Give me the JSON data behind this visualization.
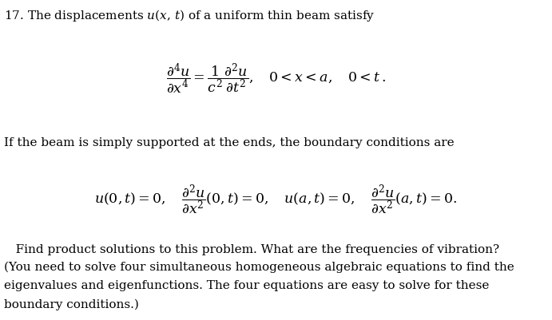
{
  "background_color": "#ffffff",
  "text_color": "#000000",
  "fig_width": 6.91,
  "fig_height": 4.02,
  "dpi": 100,
  "line1": "17. The displacements $u(x,\\, t)$ of a uniform thin beam satisfy",
  "eq1": "$\\dfrac{\\partial^4 u}{\\partial x^4} = \\dfrac{1}{c^2}\\dfrac{\\partial^2 u}{\\partial t^2}, \\quad 0 < x < a, \\quad 0 < t\\,.$",
  "line2": "If the beam is simply supported at the ends, the boundary conditions are",
  "eq2": "$u(0,t) = 0, \\quad \\dfrac{\\partial^2 u}{\\partial x^2}(0,t) = 0, \\quad u(a,t) = 0, \\quad \\dfrac{\\partial^2 u}{\\partial x^2}(a,t) = 0.$",
  "footer1": "   Find product solutions to this problem. What are the frequencies of vibration?",
  "footer2": "(You need to solve four simultaneous homogeneous algebraic equations to find the",
  "footer3": "eigenvalues and eigenfunctions. The four equations are easy to solve for these",
  "footer4": "boundary conditions.)",
  "fontsize_text": 11.0,
  "fontsize_eq": 12.5
}
